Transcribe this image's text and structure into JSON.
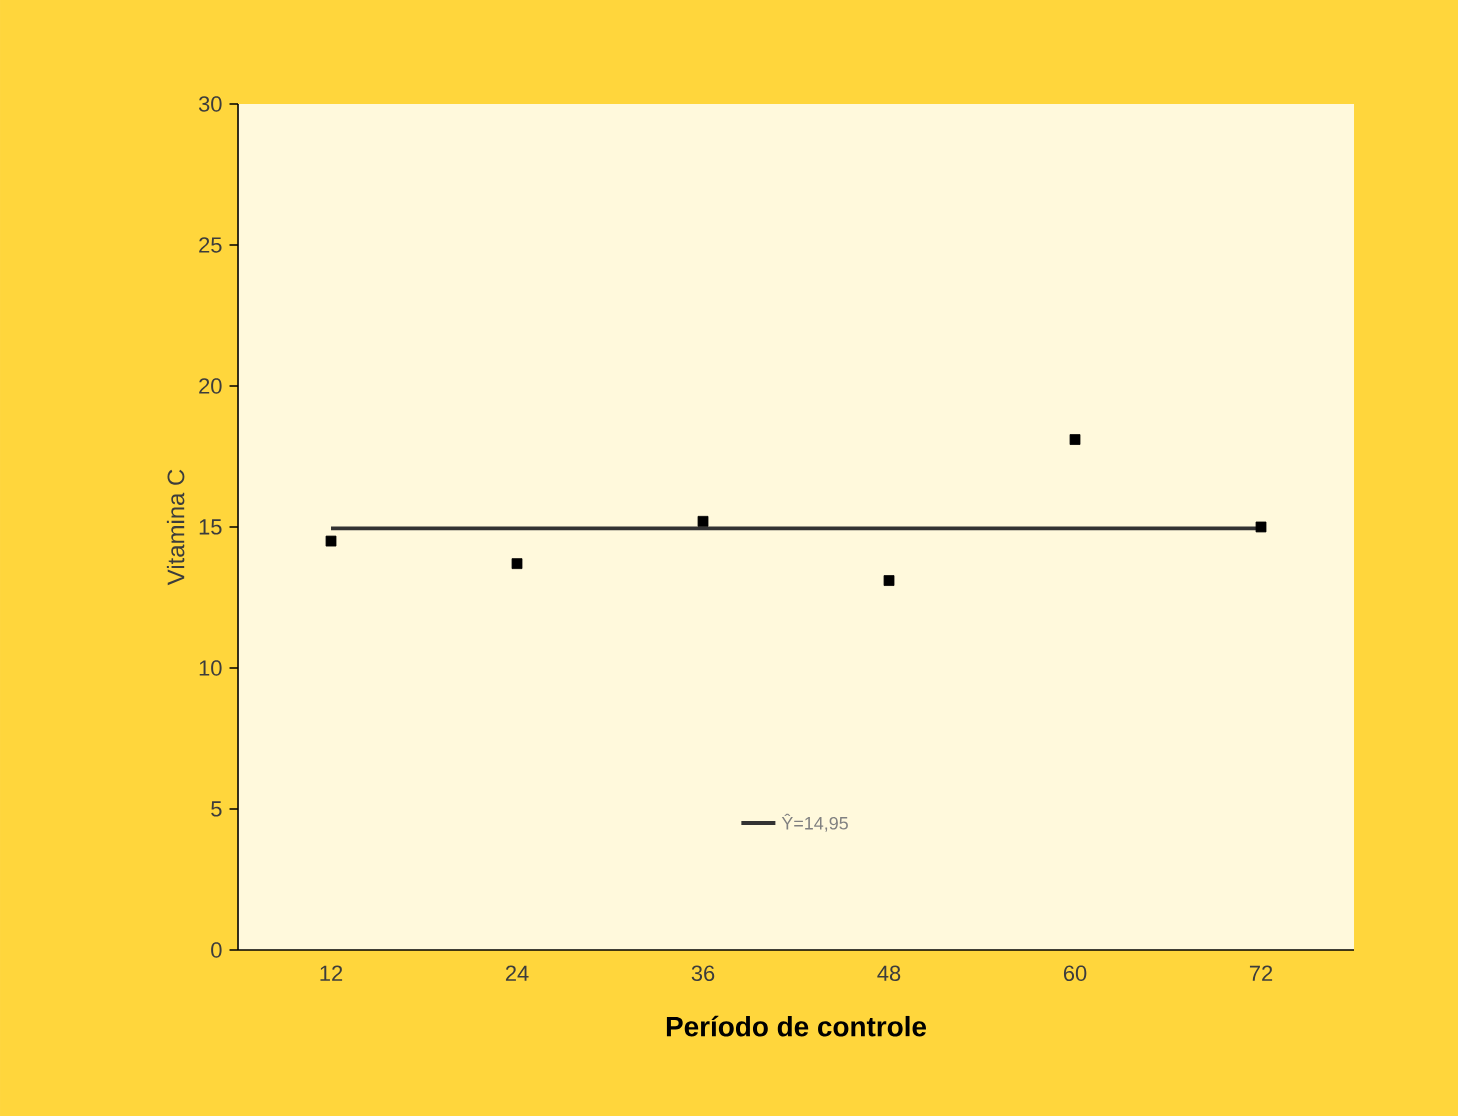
{
  "chart_data": {
    "type": "scatter",
    "xlabel": "Período de controle",
    "ylabel": "Vitamina C",
    "categories": [
      "12",
      "24",
      "36",
      "48",
      "60",
      "72"
    ],
    "ylim": [
      0,
      30
    ],
    "yticks": [
      0,
      5,
      10,
      15,
      20,
      25,
      30
    ],
    "marker": "square",
    "legend": "bottom",
    "grid": false,
    "series": [
      {
        "color": "#000000",
        "values": [
          14.5,
          13.7,
          15.2,
          13.1,
          18.1,
          15.0
        ]
      },
      {
        "type": "line",
        "name": "Ŷ=14,95",
        "color": "#333333",
        "x": [
          "12",
          "72"
        ],
        "values": [
          14.95,
          14.95
        ],
        "marker": "none",
        "line_style": "solid"
      }
    ]
  }
}
